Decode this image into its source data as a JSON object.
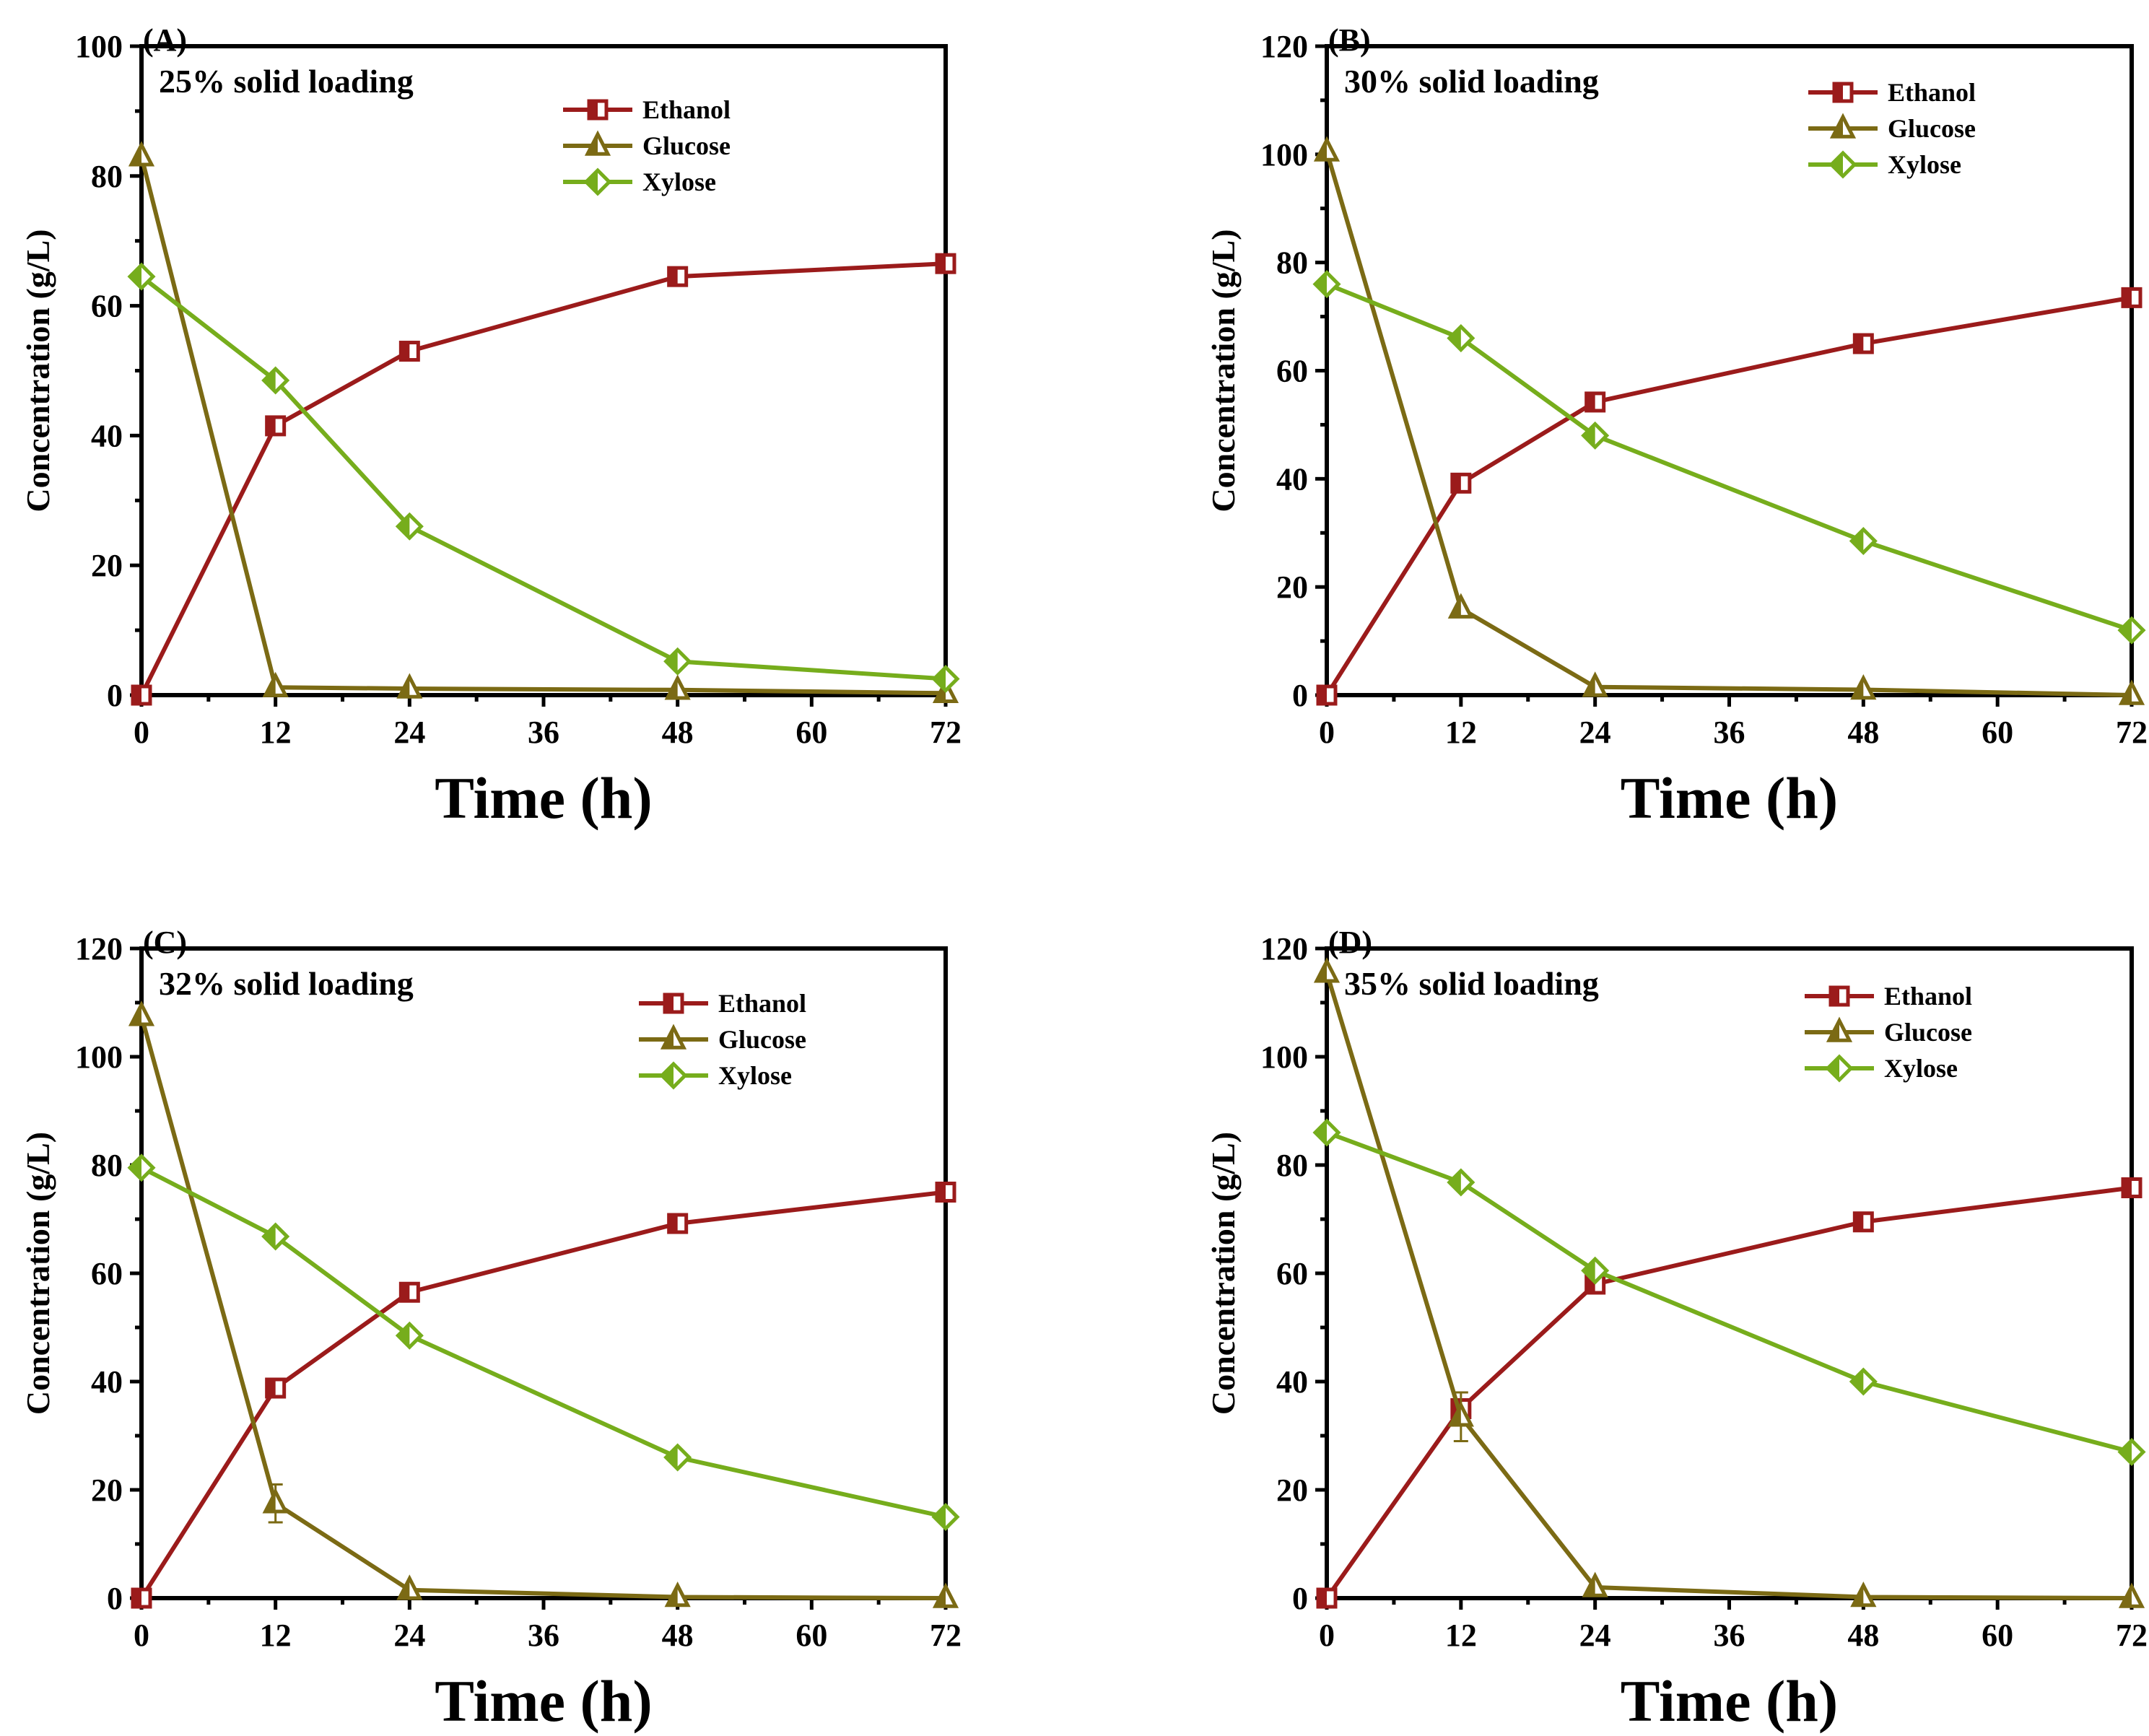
{
  "chart_data": [
    {
      "type": "line",
      "panel": "(A)",
      "annotation": "25% solid loading",
      "xlabel": "Time (h)",
      "ylabel": "Concentration (g/L)",
      "xlim": [
        0,
        72
      ],
      "ylim": [
        0,
        100
      ],
      "xticks": [
        0,
        12,
        24,
        36,
        48,
        60,
        72
      ],
      "yticks": [
        0,
        20,
        40,
        60,
        80,
        100
      ],
      "x": [
        0,
        12,
        24,
        48,
        72
      ],
      "legend_position": "top-right",
      "series": [
        {
          "name": "Ethanol",
          "color": "#9b1b1b",
          "marker": "square",
          "values": [
            0,
            41.5,
            53,
            64.5,
            66.5
          ]
        },
        {
          "name": "Glucose",
          "color": "#7b6a14",
          "marker": "triangle",
          "values": [
            83,
            1.2,
            1.0,
            0.8,
            0.3
          ],
          "errors": [
            0,
            0,
            0,
            0,
            0
          ]
        },
        {
          "name": "Xylose",
          "color": "#76ad1c",
          "marker": "diamond",
          "values": [
            64.5,
            48.5,
            26,
            5.2,
            2.5
          ]
        }
      ]
    },
    {
      "type": "line",
      "panel": "(B)",
      "annotation": "30% solid loading",
      "xlabel": "Time (h)",
      "ylabel": "Concentration (g/L)",
      "xlim": [
        0,
        72
      ],
      "ylim": [
        0,
        120
      ],
      "xticks": [
        0,
        12,
        24,
        36,
        48,
        60,
        72
      ],
      "yticks": [
        0,
        20,
        40,
        60,
        80,
        100,
        120
      ],
      "x": [
        0,
        12,
        24,
        48,
        72
      ],
      "legend_position": "top-right",
      "series": [
        {
          "name": "Ethanol",
          "color": "#9b1b1b",
          "marker": "square",
          "values": [
            0,
            39.2,
            54.2,
            65,
            73.5
          ]
        },
        {
          "name": "Glucose",
          "color": "#7b6a14",
          "marker": "triangle",
          "values": [
            100.5,
            16,
            1.5,
            1.0,
            0
          ],
          "errors": [
            0,
            0,
            0,
            0,
            0
          ]
        },
        {
          "name": "Xylose",
          "color": "#76ad1c",
          "marker": "diamond",
          "values": [
            76,
            66,
            48,
            28.5,
            12
          ]
        }
      ]
    },
    {
      "type": "line",
      "panel": "(C)",
      "annotation": "32% solid loading",
      "xlabel": "Time (h)",
      "ylabel": "Concentration (g/L)",
      "xlim": [
        0,
        72
      ],
      "ylim": [
        0,
        120
      ],
      "xticks": [
        0,
        12,
        24,
        36,
        48,
        60,
        72
      ],
      "yticks": [
        0,
        20,
        40,
        60,
        80,
        100,
        120
      ],
      "x": [
        0,
        12,
        24,
        48,
        72
      ],
      "legend_position": "top-right",
      "series": [
        {
          "name": "Ethanol",
          "color": "#9b1b1b",
          "marker": "square",
          "values": [
            0,
            38.8,
            56.5,
            69.2,
            75
          ]
        },
        {
          "name": "Glucose",
          "color": "#7b6a14",
          "marker": "triangle",
          "values": [
            107.5,
            17.5,
            1.5,
            0.2,
            0
          ],
          "errors": [
            0,
            3.5,
            0,
            0,
            0
          ]
        },
        {
          "name": "Xylose",
          "color": "#76ad1c",
          "marker": "diamond",
          "values": [
            79.5,
            66.8,
            48.5,
            26,
            15
          ]
        }
      ]
    },
    {
      "type": "line",
      "panel": "(D)",
      "annotation": "35% solid loading",
      "xlabel": "Time (h)",
      "ylabel": "Concentration (g/L)",
      "xlim": [
        0,
        72
      ],
      "ylim": [
        0,
        120
      ],
      "xticks": [
        0,
        12,
        24,
        36,
        48,
        60,
        72
      ],
      "yticks": [
        0,
        20,
        40,
        60,
        80,
        100,
        120
      ],
      "x": [
        0,
        12,
        24,
        48,
        72
      ],
      "legend_position": "top-right",
      "series": [
        {
          "name": "Ethanol",
          "color": "#9b1b1b",
          "marker": "square",
          "values": [
            0,
            35,
            58,
            69.5,
            75.8
          ]
        },
        {
          "name": "Glucose",
          "color": "#7b6a14",
          "marker": "triangle",
          "values": [
            115.5,
            33.5,
            2,
            0.2,
            0
          ],
          "errors": [
            0,
            4.5,
            0,
            0,
            0
          ]
        },
        {
          "name": "Xylose",
          "color": "#76ad1c",
          "marker": "diamond",
          "values": [
            86,
            76.8,
            60.5,
            40,
            27
          ]
        }
      ]
    }
  ]
}
